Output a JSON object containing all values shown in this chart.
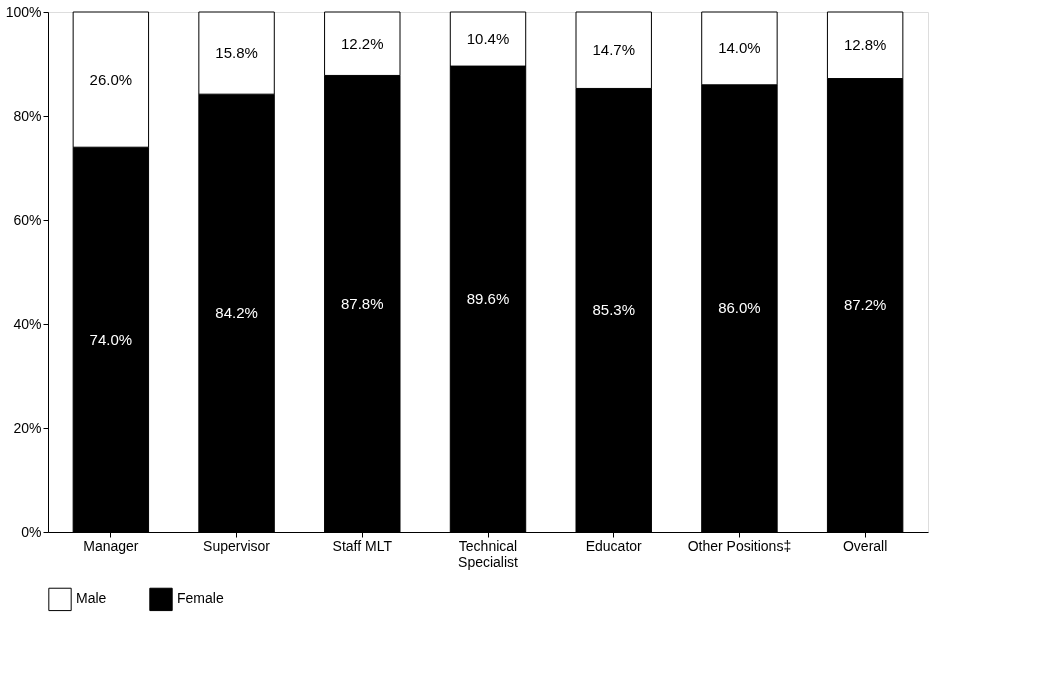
{
  "chart_data": {
    "type": "bar",
    "stacked": true,
    "categories": [
      "Manager",
      "Supervisor",
      "Staff MLT",
      "Technical Specialist",
      "Educator",
      "Other Positions‡",
      "Overall"
    ],
    "series": [
      {
        "name": "Female",
        "color": "#000000",
        "values": [
          74.0,
          84.2,
          87.8,
          89.6,
          85.3,
          86.0,
          87.2
        ],
        "value_labels": [
          "74.0%",
          "84.2%",
          "87.8%",
          "89.6%",
          "85.3%",
          "86.0%",
          "87.2%"
        ]
      },
      {
        "name": "Male",
        "color": "#ffffff",
        "values": [
          26.0,
          15.8,
          12.2,
          10.4,
          14.7,
          14.0,
          12.8
        ],
        "value_labels": [
          "26.0%",
          "15.8%",
          "12.2%",
          "10.4%",
          "14.7%",
          "14.0%",
          "12.8%"
        ]
      }
    ],
    "ylim": [
      0,
      100
    ],
    "yticks": [
      {
        "value": 0,
        "label": "0%"
      },
      {
        "value": 20,
        "label": "20%"
      },
      {
        "value": 40,
        "label": "40%"
      },
      {
        "value": 60,
        "label": "60%"
      },
      {
        "value": 80,
        "label": "80%"
      },
      {
        "value": 100,
        "label": "100%"
      }
    ],
    "grid": false,
    "legend": "bottom"
  }
}
